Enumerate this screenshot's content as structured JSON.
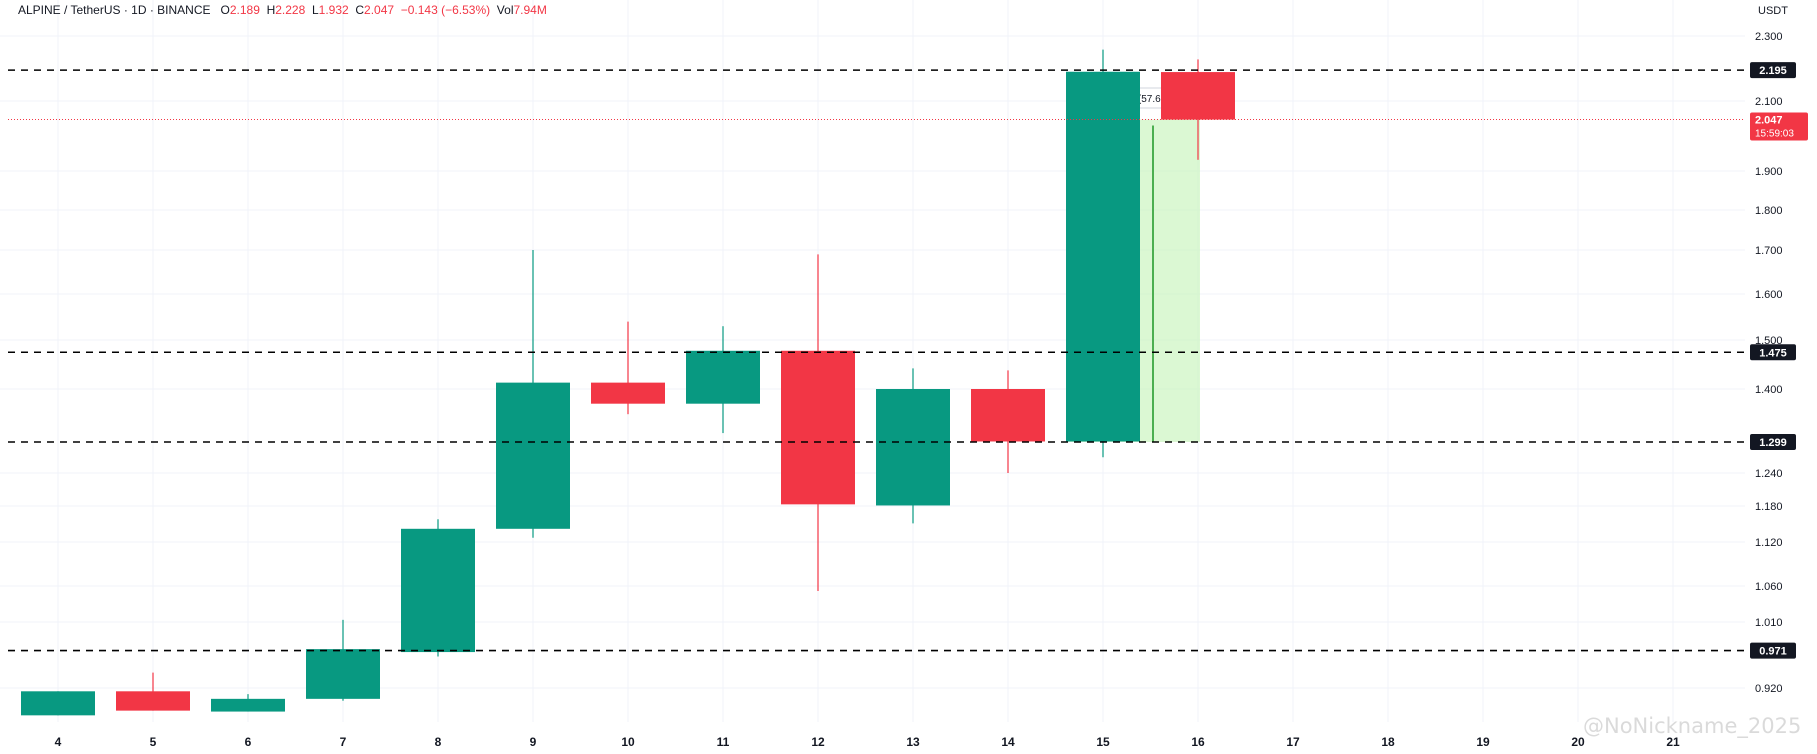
{
  "header": {
    "symbol": "ALPINE / TetherUS · 1D · BINANCE",
    "open_key": "O",
    "open": "2.189",
    "high_key": "H",
    "high": "2.228",
    "low_key": "L",
    "low": "1.932",
    "close_key": "C",
    "close": "2.047",
    "change": "−0.143 (−6.53%)",
    "vol_key": "Vol",
    "vol": "7.94M"
  },
  "axis": {
    "currency": "USDT",
    "y_ticks": [
      {
        "value": 2.3,
        "label": "2.300"
      },
      {
        "value": 2.1,
        "label": "2.100"
      },
      {
        "value": 1.9,
        "label": "1.900"
      },
      {
        "value": 1.8,
        "label": "1.800"
      },
      {
        "value": 1.7,
        "label": "1.700"
      },
      {
        "value": 1.6,
        "label": "1.600"
      },
      {
        "value": 1.5,
        "label": "1.500"
      },
      {
        "value": 1.4,
        "label": "1.400"
      },
      {
        "value": 1.24,
        "label": "1.240"
      },
      {
        "value": 1.18,
        "label": "1.180"
      },
      {
        "value": 1.12,
        "label": "1.120"
      },
      {
        "value": 1.06,
        "label": "1.060"
      },
      {
        "value": 1.01,
        "label": "1.010"
      },
      {
        "value": 0.92,
        "label": "0.920"
      }
    ],
    "x_ticks": [
      "4",
      "5",
      "6",
      "7",
      "8",
      "9",
      "10",
      "11",
      "12",
      "13",
      "14",
      "15",
      "16",
      "17",
      "18",
      "19",
      "20",
      "21"
    ]
  },
  "chart_data": {
    "type": "candlestick",
    "categories": [
      "4",
      "5",
      "6",
      "7",
      "8",
      "9",
      "10",
      "11",
      "12",
      "13",
      "14",
      "15",
      "16"
    ],
    "ohlc": [
      {
        "date": "4",
        "open": 0.862,
        "high": 0.913,
        "low": 0.862,
        "close": 0.913
      },
      {
        "date": "5",
        "open": 0.913,
        "high": 0.941,
        "low": 0.872,
        "close": 0.872
      },
      {
        "date": "6",
        "open": 0.87,
        "high": 0.907,
        "low": 0.87,
        "close": 0.897
      },
      {
        "date": "7",
        "open": 0.897,
        "high": 1.013,
        "low": 0.893,
        "close": 0.973
      },
      {
        "date": "8",
        "open": 0.969,
        "high": 1.158,
        "low": 0.963,
        "close": 1.142
      },
      {
        "date": "9",
        "open": 1.142,
        "high": 1.7,
        "low": 1.127,
        "close": 1.413
      },
      {
        "date": "10",
        "open": 1.413,
        "high": 1.54,
        "low": 1.352,
        "close": 1.372
      },
      {
        "date": "11",
        "open": 1.372,
        "high": 1.53,
        "low": 1.316,
        "close": 1.478
      },
      {
        "date": "12",
        "open": 1.478,
        "high": 1.69,
        "low": 1.053,
        "close": 1.183
      },
      {
        "date": "13",
        "open": 1.181,
        "high": 1.442,
        "low": 1.151,
        "close": 1.4
      },
      {
        "date": "14",
        "open": 1.4,
        "high": 1.438,
        "low": 1.24,
        "close": 1.3
      },
      {
        "date": "15",
        "open": 1.3,
        "high": 2.258,
        "low": 1.27,
        "close": 2.19
      },
      {
        "date": "16",
        "open": 2.189,
        "high": 2.228,
        "low": 1.932,
        "close": 2.047
      }
    ],
    "levels": [
      {
        "value": 2.195,
        "label": "2.195"
      },
      {
        "value": 1.475,
        "label": "1.475"
      },
      {
        "value": 1.299,
        "label": "1.299"
      },
      {
        "value": 0.971,
        "label": "0.971"
      }
    ],
    "last_price": {
      "value": 2.047,
      "label": "2.047",
      "countdown": "15:59:03"
    },
    "measure": {
      "from": 1.299,
      "to": 2.047,
      "label": "0.748 (57.63%) 748"
    },
    "colors": {
      "up": "#089981",
      "down": "#f23645",
      "grid": "#f0f3fa",
      "level": "#000000",
      "measure_fill": "#c8f5bc",
      "measure_line": "#4caf50"
    }
  },
  "watermark": "@NoNickname_2025"
}
